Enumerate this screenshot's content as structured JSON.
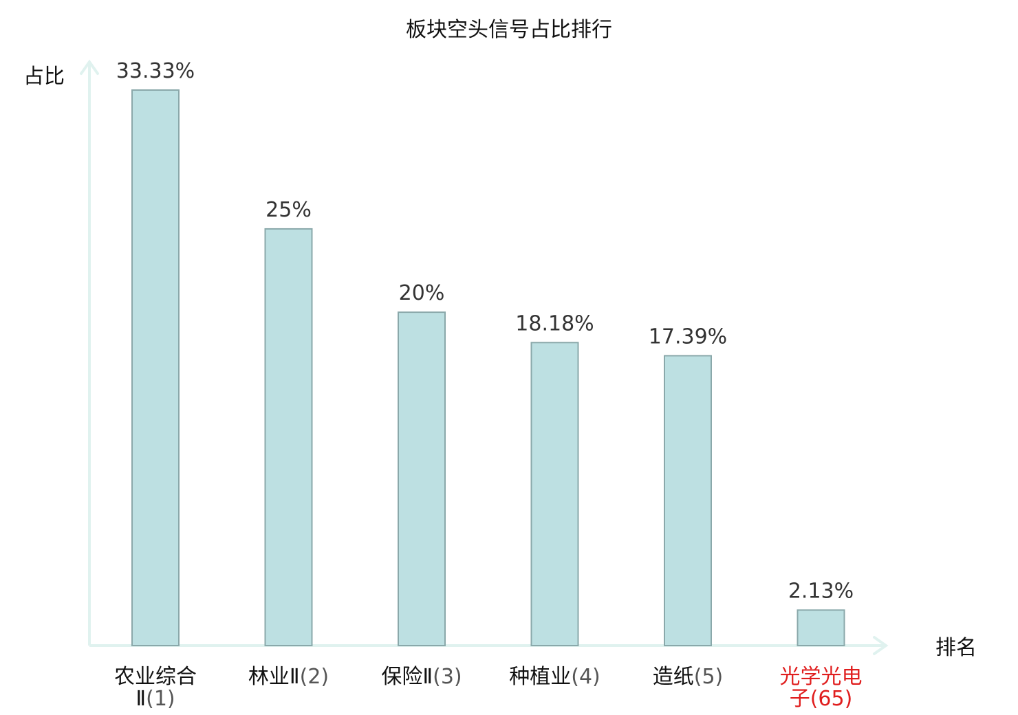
{
  "chart_data": {
    "type": "bar",
    "title": "板块空头信号占比排行",
    "ylabel": "占比",
    "xlabel": "排名",
    "ylim": [
      0,
      35
    ],
    "grid": false,
    "legend": "none",
    "categories": [
      {
        "name": "农业综合Ⅱ",
        "rank": "(1)",
        "highlight": false
      },
      {
        "name": "林业Ⅱ",
        "rank": "(2)",
        "highlight": false
      },
      {
        "name": "保险Ⅱ",
        "rank": "(3)",
        "highlight": false
      },
      {
        "name": "种植业",
        "rank": "(4)",
        "highlight": false
      },
      {
        "name": "造纸",
        "rank": "(5)",
        "highlight": false
      },
      {
        "name": "光学光电子",
        "rank": "(65)",
        "highlight": true
      }
    ],
    "values": [
      33.33,
      25,
      20,
      18.18,
      17.39,
      2.13
    ],
    "value_labels": [
      "33.33%",
      "25%",
      "20%",
      "18.18%",
      "17.39%",
      "2.13%"
    ],
    "colors": {
      "bar_fill": "#bde0e2",
      "bar_stroke": "#8aa8aa",
      "axis": "#e0f2ef",
      "highlight_text": "#e01e1e"
    }
  }
}
